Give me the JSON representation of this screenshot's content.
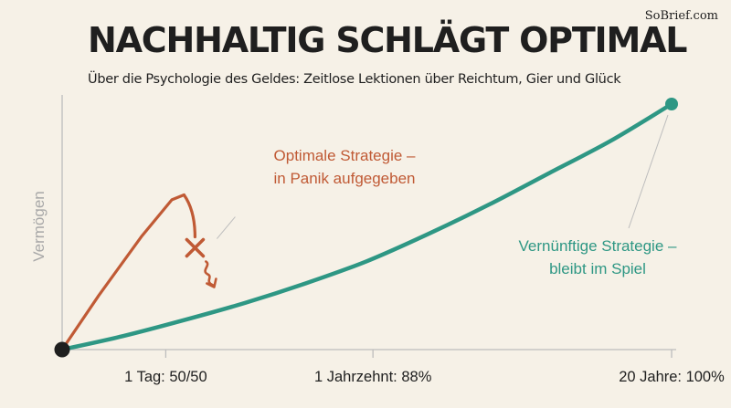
{
  "brand": "SoBrief.com",
  "title": "NACHHALTIG SCHLÄGT OPTIMAL",
  "subtitle": "Über die Psychologie des Geldes: Zeitlose Lektionen über Reichtum, Gier und Glück",
  "colors": {
    "background": "#f6f1e7",
    "optimal": "#c05a35",
    "sustainable": "#2e9784",
    "axis": "#bdbdbd",
    "text": "#1f1f1f",
    "ylabel": "#a8a8a8"
  },
  "chart_data": {
    "type": "line",
    "title": "NACHHALTIG SCHLÄGT OPTIMAL",
    "subtitle": "Über die Psychologie des Geldes: Zeitlose Lektionen über Reichtum, Gier und Glück",
    "xlabel": "",
    "ylabel": "Vermögen",
    "xlim": [
      0,
      1
    ],
    "ylim": [
      0,
      1
    ],
    "grid": false,
    "ticks": [
      {
        "x": 0.17,
        "label": "1 Tag: 50/50"
      },
      {
        "x": 0.51,
        "label": "1 Jahrzehnt: 88%"
      },
      {
        "x": 1.0,
        "label": "20 Jahre: 100%"
      }
    ],
    "series": [
      {
        "key": "sustainable",
        "label_lines": [
          "Vernünftige Strategie –",
          "bleibt im Spiel"
        ],
        "points": [
          [
            0,
            0
          ],
          [
            0.1,
            0.055
          ],
          [
            0.2,
            0.12
          ],
          [
            0.3,
            0.19
          ],
          [
            0.4,
            0.27
          ],
          [
            0.5,
            0.36
          ],
          [
            0.6,
            0.47
          ],
          [
            0.7,
            0.59
          ],
          [
            0.8,
            0.72
          ],
          [
            0.9,
            0.85
          ],
          [
            1.0,
            1.0
          ]
        ]
      },
      {
        "key": "optimal",
        "label_lines": [
          "Optimale Strategie –",
          "in Panik aufgegeben"
        ],
        "points": [
          [
            0,
            0
          ],
          [
            0.06,
            0.22
          ],
          [
            0.13,
            0.46
          ],
          [
            0.18,
            0.61
          ],
          [
            0.2,
            0.63
          ]
        ],
        "crash_marker": "x-mark-icon",
        "crash_arrow": "squiggle-arrow-icon"
      }
    ]
  }
}
